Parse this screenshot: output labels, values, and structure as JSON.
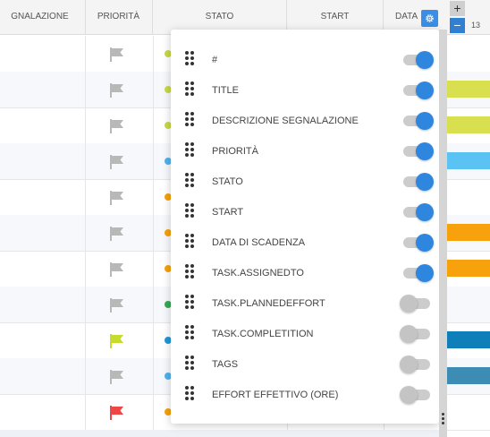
{
  "header": {
    "columns": [
      {
        "key": "descr",
        "label": "GNALAZIONE"
      },
      {
        "key": "priority",
        "label": "PRIORITÀ"
      },
      {
        "key": "status",
        "label": "STATO"
      },
      {
        "key": "start",
        "label": "START"
      },
      {
        "key": "due",
        "label": "DATA"
      }
    ],
    "zoom_in_label": "+",
    "zoom_out_label": "−",
    "timeline_day": "13",
    "settings_icon": "gear-icon"
  },
  "rows": [
    {
      "flag_color": "#b8b8b8",
      "status_color": "#c8d94a",
      "bar_color": ""
    },
    {
      "flag_color": "#b8b8b8",
      "status_color": "#c8d94a",
      "bar_color": "#d8e050"
    },
    {
      "flag_color": "#b8b8b8",
      "status_color": "#c8d94a",
      "bar_color": "#d8e050"
    },
    {
      "flag_color": "#b8b8b8",
      "status_color": "#4fb3ec",
      "bar_color": "#5ac3f3"
    },
    {
      "flag_color": "#b8b8b8",
      "status_color": "#f5a20a",
      "bar_color": ""
    },
    {
      "flag_color": "#b8b8b8",
      "status_color": "#f5a20a",
      "bar_color": "#f7a10c"
    },
    {
      "flag_color": "#b8b8b8",
      "status_color": "#f5a20a",
      "bar_color": "#f7a10c"
    },
    {
      "flag_color": "#b8b8b8",
      "status_color": "#3aa857",
      "bar_color": ""
    },
    {
      "flag_color": "#c6dc2c",
      "status_color": "#2098d8",
      "bar_color": "#0e7fb8"
    },
    {
      "flag_color": "#b8b8b8",
      "status_color": "#4fb3ec",
      "bar_color": "#3c8cb4"
    },
    {
      "flag_color": "#ef4646",
      "status_color": "#f5a20a",
      "bar_color": ""
    }
  ],
  "column_picker": {
    "items": [
      {
        "label": "#",
        "enabled": true
      },
      {
        "label": "TITLE",
        "enabled": true
      },
      {
        "label": "DESCRIZIONE SEGNALAZIONE",
        "enabled": true
      },
      {
        "label": "PRIORITÀ",
        "enabled": true
      },
      {
        "label": "STATO",
        "enabled": true
      },
      {
        "label": "START",
        "enabled": true
      },
      {
        "label": "DATA DI SCADENZA",
        "enabled": true
      },
      {
        "label": "TASK.ASSIGNEDTO",
        "enabled": true
      },
      {
        "label": "TASK.PLANNEDEFFORT",
        "enabled": false
      },
      {
        "label": "TASK.COMPLETITION",
        "enabled": false
      },
      {
        "label": "TAGS",
        "enabled": false
      },
      {
        "label": "EFFORT EFFETTIVO (ORE)",
        "enabled": false
      }
    ]
  },
  "colors": {
    "accent": "#2f86de",
    "toggle_off": "#c4c4c4"
  }
}
